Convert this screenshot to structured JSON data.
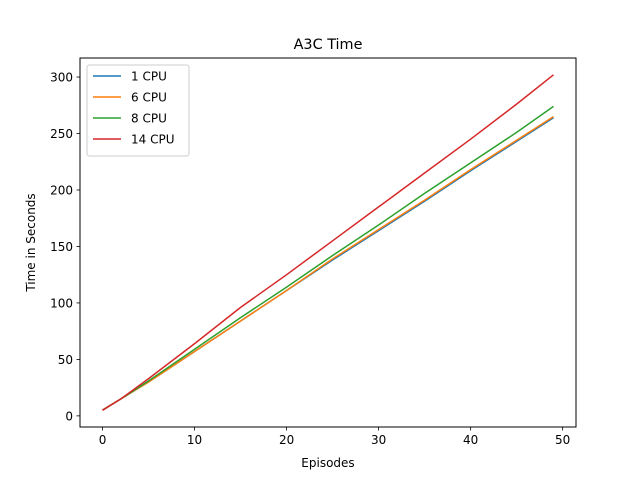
{
  "chart_data": {
    "type": "line",
    "title": "A3C Time",
    "xlabel": "Episodes",
    "ylabel": "Time in Seconds",
    "xlim": [
      -2.45,
      51.45
    ],
    "ylim": [
      -9.85,
      316.85
    ],
    "xticks": [
      0,
      10,
      20,
      30,
      40,
      50
    ],
    "yticks": [
      0,
      50,
      100,
      150,
      200,
      250,
      300
    ],
    "grid": false,
    "legend_position": "top-left",
    "x": [
      0,
      2,
      5,
      10,
      15,
      20,
      25,
      30,
      35,
      40,
      45,
      49
    ],
    "series": [
      {
        "name": "1 CPU",
        "color": "#1f77b4",
        "values": [
          5,
          15,
          30,
          57,
          84,
          111,
          138,
          164,
          190,
          217,
          243,
          264
        ]
      },
      {
        "name": "6 CPU",
        "color": "#ff7f0e",
        "values": [
          5,
          15,
          30,
          57,
          84,
          111,
          139,
          165,
          191,
          218,
          244,
          265
        ]
      },
      {
        "name": "8 CPU",
        "color": "#2ca02c",
        "values": [
          5,
          15,
          31,
          59,
          87,
          114,
          142,
          169,
          197,
          224,
          251,
          274
        ]
      },
      {
        "name": "14 CPU",
        "color": "#d62728",
        "values": [
          5,
          15,
          33,
          64,
          96,
          125,
          155,
          185,
          215,
          245,
          276,
          302
        ]
      }
    ]
  }
}
